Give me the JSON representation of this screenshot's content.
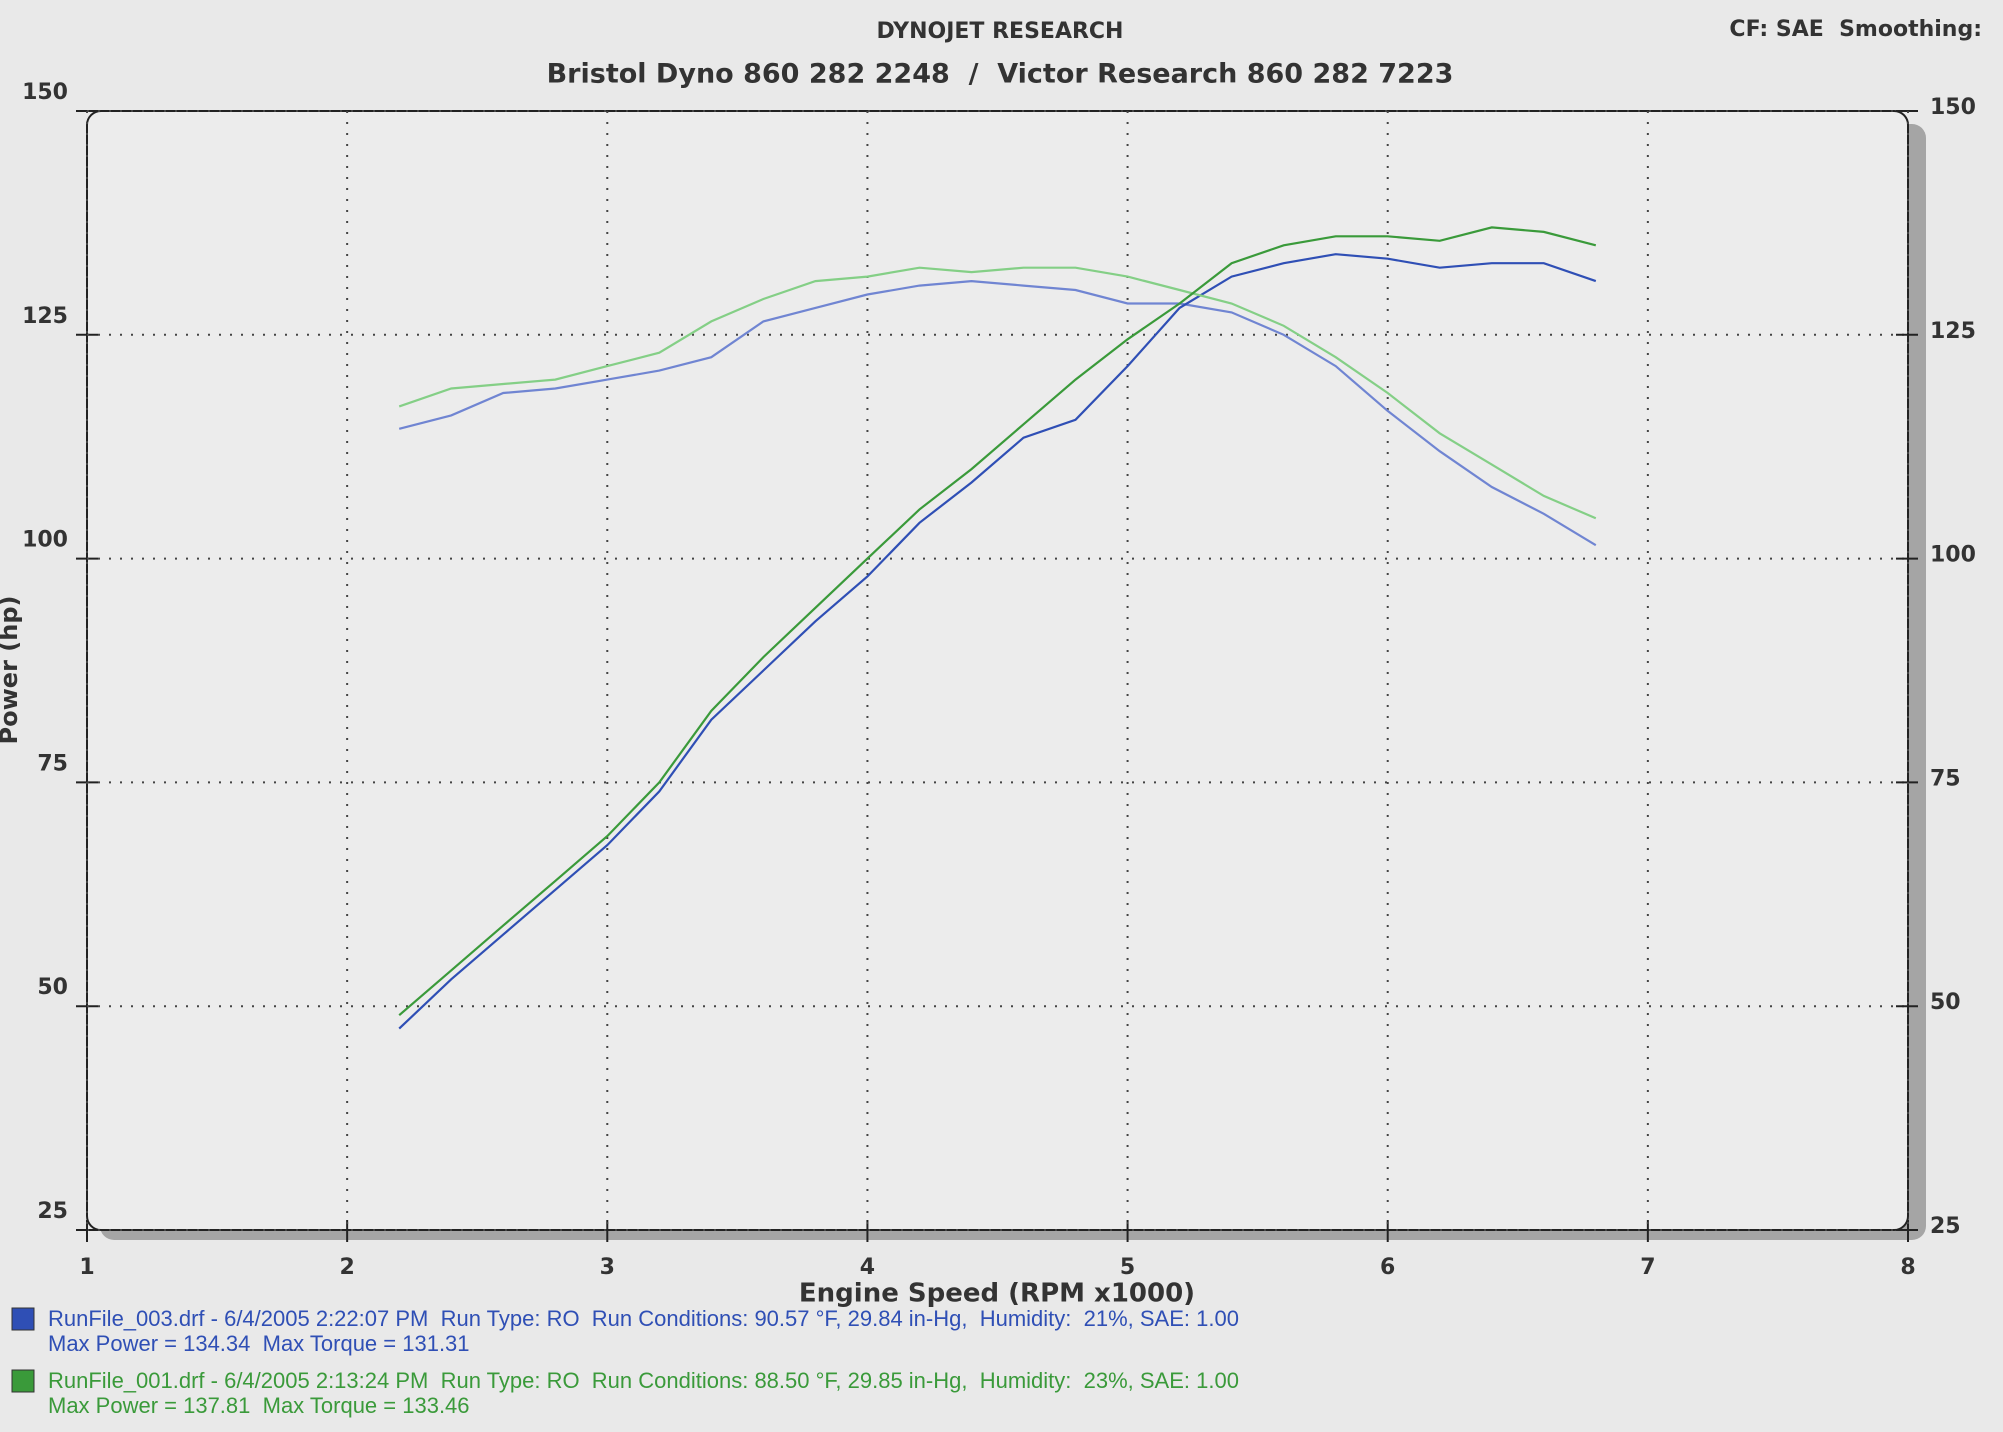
{
  "chart_data": {
    "type": "line",
    "title": "DYNOJET RESEARCH",
    "subtitle": "Bristol Dyno 860 282 2248  /  Victor Research 860 282 7223",
    "corner_note": "CF: SAE  Smoothing:",
    "y_label": "Power (hp)",
    "x_label": "Engine Speed (RPM x1000)",
    "xlim": [
      1,
      8
    ],
    "xticks": [
      1,
      2,
      3,
      4,
      5,
      6,
      7,
      8
    ],
    "ylim": [
      25,
      150
    ],
    "yticks": [
      25,
      50,
      75,
      100,
      125,
      150
    ],
    "y2lim": [
      25,
      150
    ],
    "y2ticks": [
      25,
      50,
      75,
      100,
      125,
      150
    ],
    "grid": true,
    "x": [
      2.2,
      2.4,
      2.6,
      2.8,
      3.0,
      3.2,
      3.4,
      3.6,
      3.8,
      4.0,
      4.2,
      4.4,
      4.6,
      4.8,
      5.0,
      5.2,
      5.4,
      5.6,
      5.8,
      6.0,
      6.2,
      6.4,
      6.6,
      6.8
    ],
    "series": [
      {
        "name": "RunFile_003.drf - 6/4/2005 2:22:07 PM  Run Type: RO  Run Conditions: 90.57 °F, 29.84 in-Hg,  Humidity:  21%, SAE: 1.00",
        "summary": "Max Power = 134.34  Max Torque = 131.31",
        "color": "#2f4fb5",
        "torque_color": "#7085d2",
        "power": [
          47.5,
          53,
          58,
          63,
          68,
          74,
          82,
          87.5,
          93,
          98,
          104,
          108.5,
          113.5,
          115.5,
          121.5,
          128,
          131.5,
          133,
          134,
          133.5,
          132.5,
          133,
          133,
          131
        ],
        "torque": [
          114.5,
          116,
          118.5,
          119,
          120,
          121,
          122.5,
          126.5,
          128,
          129.5,
          130.5,
          131,
          130.5,
          130,
          128.5,
          128.5,
          127.5,
          125,
          121.5,
          116.5,
          112,
          108,
          105,
          101.5
        ]
      },
      {
        "name": "RunFile_001.drf - 6/4/2005 2:13:24 PM  Run Type: RO  Run Conditions: 88.50 °F, 29.85 in-Hg,  Humidity:  23%, SAE: 1.00",
        "summary": "Max Power = 137.81  Max Torque = 133.46",
        "color": "#3a9a3a",
        "torque_color": "#84cf86",
        "power": [
          49,
          54,
          59,
          64,
          69,
          75,
          83,
          89,
          94.5,
          100,
          105.5,
          110,
          115,
          120,
          124.5,
          128.5,
          133,
          135,
          136,
          136,
          135.5,
          137,
          136.5,
          135
        ],
        "torque": [
          117,
          119,
          119.5,
          120,
          121.5,
          123,
          126.5,
          129,
          131,
          131.5,
          132.5,
          132,
          132.5,
          132.5,
          131.5,
          130,
          128.5,
          126,
          122.5,
          118.5,
          114,
          110.5,
          107,
          104.5
        ]
      }
    ]
  }
}
